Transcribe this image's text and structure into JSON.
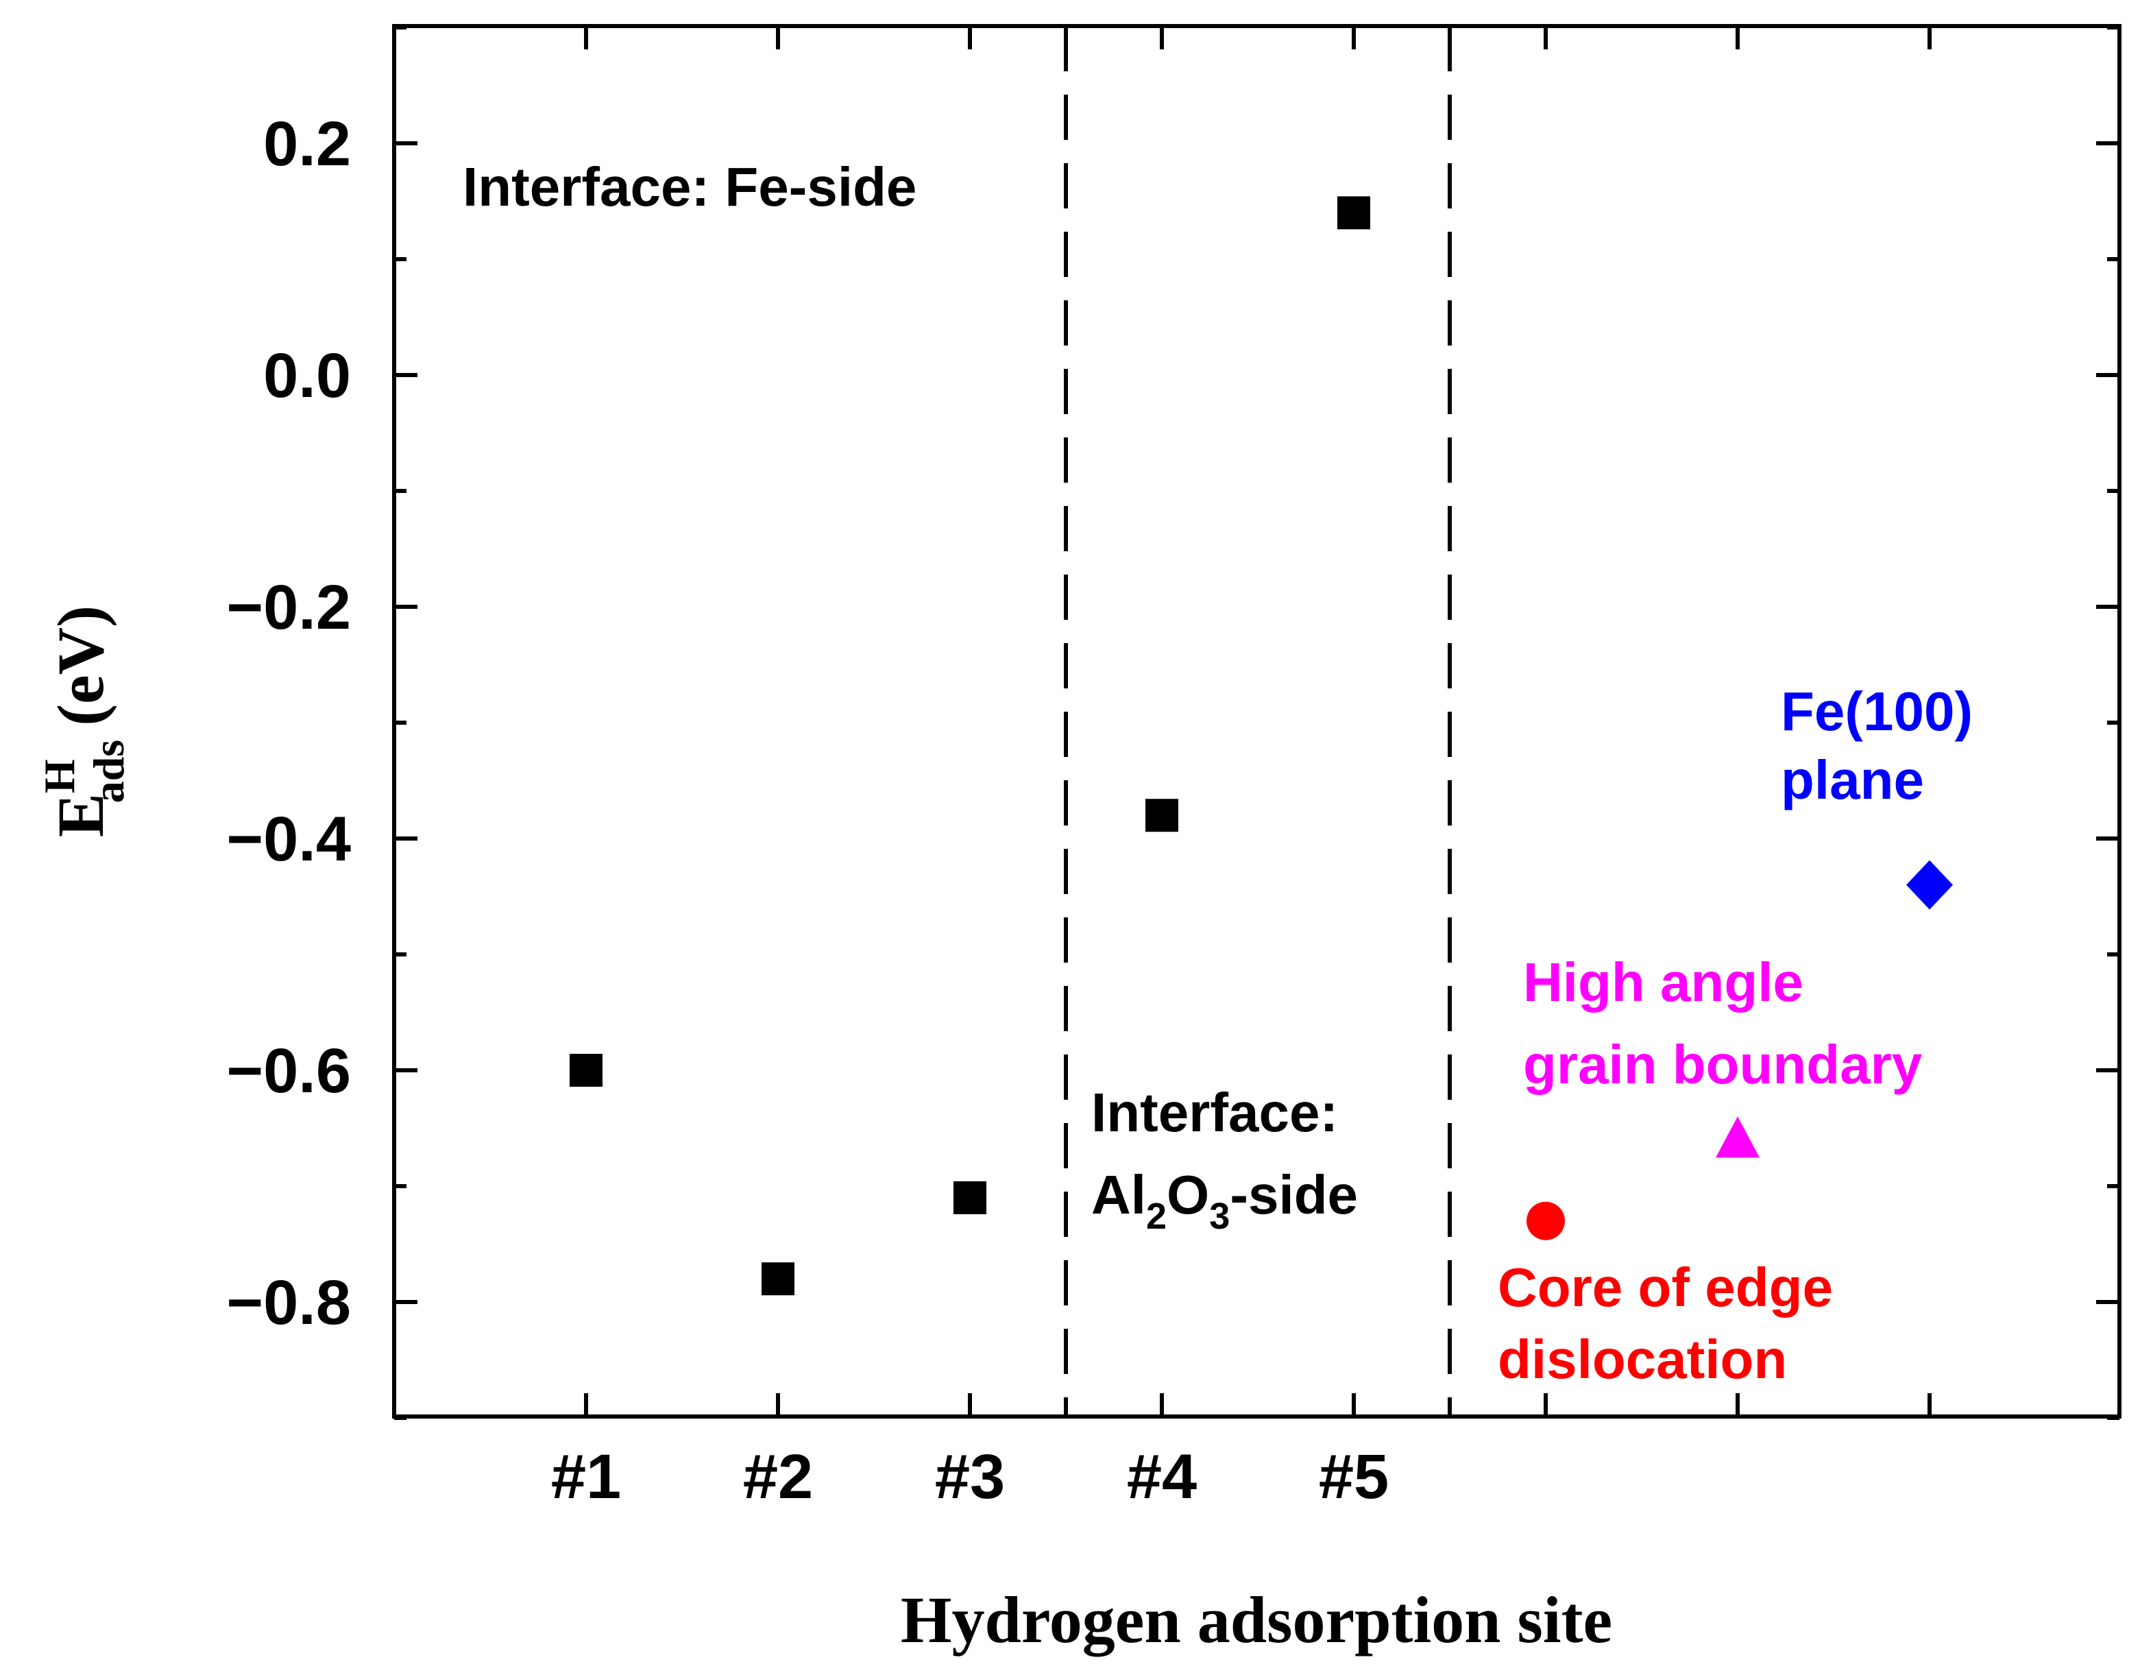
{
  "chart_data": {
    "type": "scatter",
    "title": "",
    "xlabel": "Hydrogen adsorption site",
    "ylabel": {
      "symbol": "E",
      "superscript": "H",
      "subscript": "ads",
      "unit": "(eV)"
    },
    "ylim": [
      -1.0,
      0.3
    ],
    "xlim": [
      0,
      8
    ],
    "grid": false,
    "legend": "none",
    "categories": [
      "#1",
      "#2",
      "#3",
      "#4",
      "#5",
      "",
      "",
      ""
    ],
    "yticks": [
      0.2,
      0.0,
      -0.2,
      -0.4,
      -0.6,
      -0.8
    ],
    "ytick_labels": [
      "0.2",
      "0.0",
      "−0.2",
      "−0.4",
      "−0.6",
      "−0.8"
    ],
    "minor_ytick_step": 0.1,
    "separators_x": [
      3.5,
      5.5
    ],
    "series": [
      {
        "marker": "square",
        "color": "#000000",
        "points": [
          {
            "x": 1,
            "y": -0.6
          },
          {
            "x": 2,
            "y": -0.78
          },
          {
            "x": 3,
            "y": -0.71
          },
          {
            "x": 4,
            "y": -0.38
          },
          {
            "x": 5,
            "y": 0.14
          }
        ]
      },
      {
        "marker": "circle",
        "color": "#ff0000",
        "points": [
          {
            "x": 6,
            "y": -0.73
          }
        ]
      },
      {
        "marker": "triangle",
        "color": "#ff00ff",
        "points": [
          {
            "x": 7,
            "y": -0.66
          }
        ]
      },
      {
        "marker": "diamond",
        "color": "#0000ff",
        "points": [
          {
            "x": 8,
            "y": -0.44
          }
        ]
      }
    ],
    "annotations": {
      "fe_side": "Interface: Fe-side",
      "al2o3_line1": "Interface:",
      "al2o3_al": "Al",
      "al2o3_sub2": "2",
      "al2o3_o": "O",
      "al2o3_sub3": "3",
      "al2o3_tail": "-side",
      "edge_line1": "Core of edge",
      "edge_line2": "dislocation",
      "gb_line1": "High angle",
      "gb_line2": "grain boundary",
      "fe100_line1": "Fe(100)",
      "fe100_line2": "plane"
    },
    "colors": {
      "edge": "#ff0000",
      "gb": "#ff00ff",
      "fe100": "#0000ff",
      "text": "#000000"
    }
  }
}
